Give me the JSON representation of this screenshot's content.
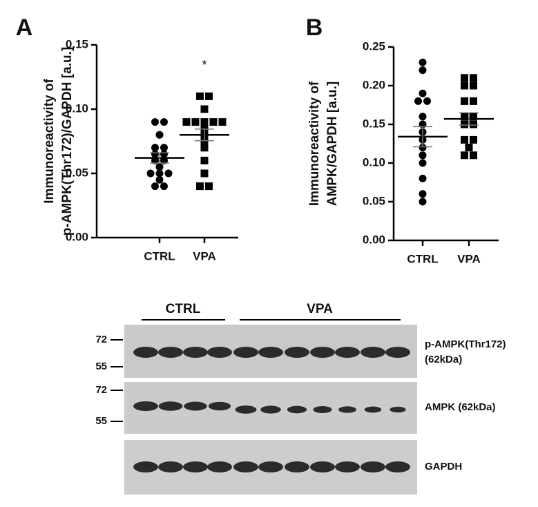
{
  "chart_data": [
    {
      "type": "dot",
      "panel": "A",
      "y_label": [
        "Immunoreactivity of",
        "p-AMPK(Thr172)/GAPDH [a.u.]"
      ],
      "categories": [
        "CTRL",
        "VPA"
      ],
      "groups": [
        {
          "marker": "circle",
          "color": "#000000",
          "values": [
            0.09,
            0.09,
            0.08,
            0.07,
            0.07,
            0.065,
            0.065,
            0.06,
            0.06,
            0.055,
            0.05,
            0.05,
            0.05,
            0.045,
            0.04,
            0.04
          ],
          "mean": 0.062,
          "sem": 0.004
        },
        {
          "marker": "square",
          "color": "#000000",
          "values": [
            0.11,
            0.11,
            0.1,
            0.09,
            0.09,
            0.09,
            0.09,
            0.09,
            0.085,
            0.08,
            0.075,
            0.07,
            0.06,
            0.05,
            0.04,
            0.04
          ],
          "mean": 0.08,
          "sem": 0.0045,
          "annotation": "*"
        }
      ],
      "ylim": [
        0,
        0.15
      ],
      "yticks": [
        {
          "value": 0,
          "label": "0.00"
        },
        0.05,
        {
          "value": 0.1,
          "label": "0.10"
        },
        0.15
      ]
    },
    {
      "type": "dot",
      "panel": "B",
      "y_label": [
        "Immunoreactivity of",
        "AMPK/GAPDH [a.u.]"
      ],
      "categories": [
        "CTRL",
        "VPA"
      ],
      "groups": [
        {
          "marker": "circle",
          "color": "#000000",
          "values": [
            0.23,
            0.22,
            0.19,
            0.18,
            0.18,
            0.16,
            0.15,
            0.14,
            0.13,
            0.12,
            0.11,
            0.1,
            0.08,
            0.06,
            0.05
          ],
          "mean": 0.134,
          "sem": 0.013
        },
        {
          "marker": "square",
          "color": "#000000",
          "values": [
            0.21,
            0.21,
            0.2,
            0.2,
            0.18,
            0.18,
            0.16,
            0.16,
            0.15,
            0.15,
            0.13,
            0.13,
            0.12,
            0.11,
            0.11
          ],
          "mean": 0.157,
          "sem": 0.008
        }
      ],
      "ylim": [
        0,
        0.25
      ],
      "yticks": [
        {
          "value": 0,
          "label": "0.00"
        },
        0.05,
        {
          "value": 0.1,
          "label": "0.10"
        },
        0.15,
        {
          "value": 0.2,
          "label": "0.20"
        },
        0.25
      ]
    }
  ],
  "blot": {
    "groups": [
      "CTRL",
      "VPA"
    ],
    "panels": [
      {
        "markers": [
          "72",
          "55"
        ],
        "labels": [
          "p-AMPK(Thr172)",
          "(62kDa)"
        ]
      },
      {
        "markers": [
          "72",
          "55"
        ],
        "labels": [
          "AMPK (62kDa)"
        ]
      },
      {
        "labels": [
          "GAPDH"
        ]
      }
    ]
  }
}
